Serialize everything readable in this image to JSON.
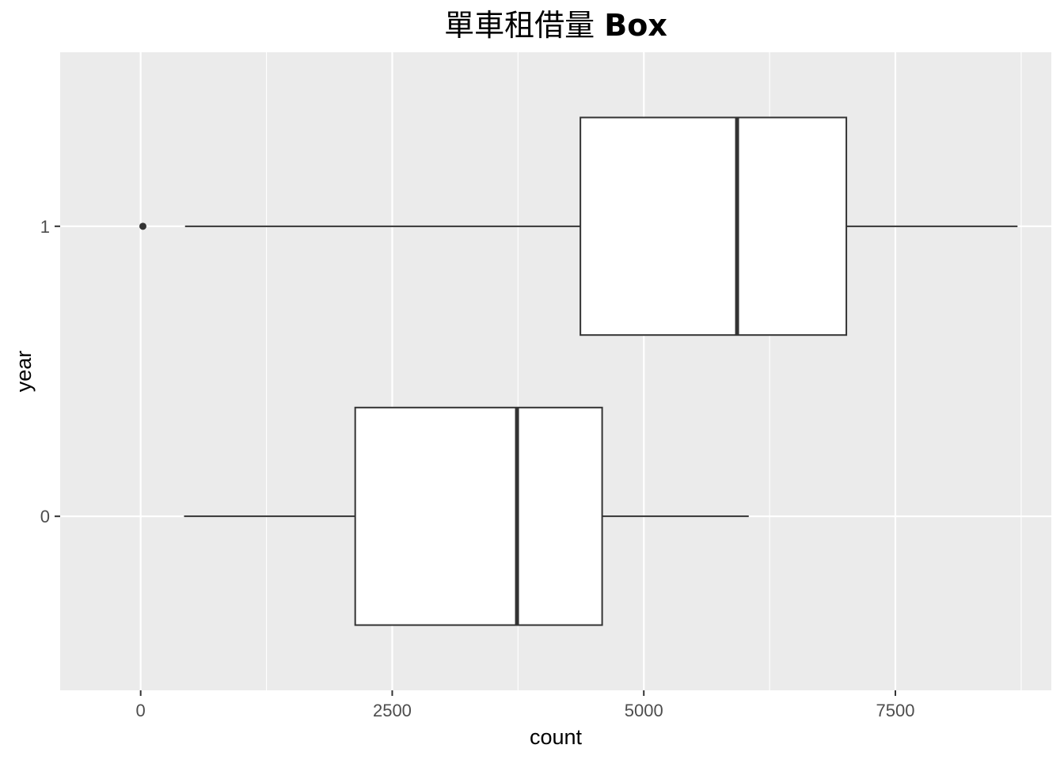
{
  "chart_data": {
    "type": "boxplot",
    "orientation": "horizontal",
    "title": {
      "main": "單車租借量",
      "suffix": "Box"
    },
    "xlabel": "count",
    "ylabel": "year",
    "xlim": [
      -800,
      9050
    ],
    "x_ticks": [
      0,
      2500,
      5000,
      7500
    ],
    "x_tick_labels": [
      "0",
      "2500",
      "5000",
      "7500"
    ],
    "x_minor_ticks": [
      1250,
      3750,
      6250,
      8750
    ],
    "categories": [
      "0",
      "1"
    ],
    "grid": true,
    "legend": "none",
    "series": [
      {
        "category": "0",
        "whisker_low": 431,
        "q1": 2132,
        "median": 3740,
        "q3": 4586,
        "whisker_high": 6043,
        "outliers": []
      },
      {
        "category": "1",
        "whisker_low": 441,
        "q1": 4370,
        "median": 5927,
        "q3": 7013,
        "whisker_high": 8714,
        "outliers": [
          22
        ]
      }
    ],
    "colors": {
      "panel_background": "#ebebeb",
      "grid_major": "#ffffff",
      "grid_minor": "#ffffff",
      "box_fill": "#ffffff",
      "box_line": "#333333",
      "tick_text": "#4d4d4d",
      "tick_mark": "#333333",
      "title_text": "#000000"
    }
  }
}
